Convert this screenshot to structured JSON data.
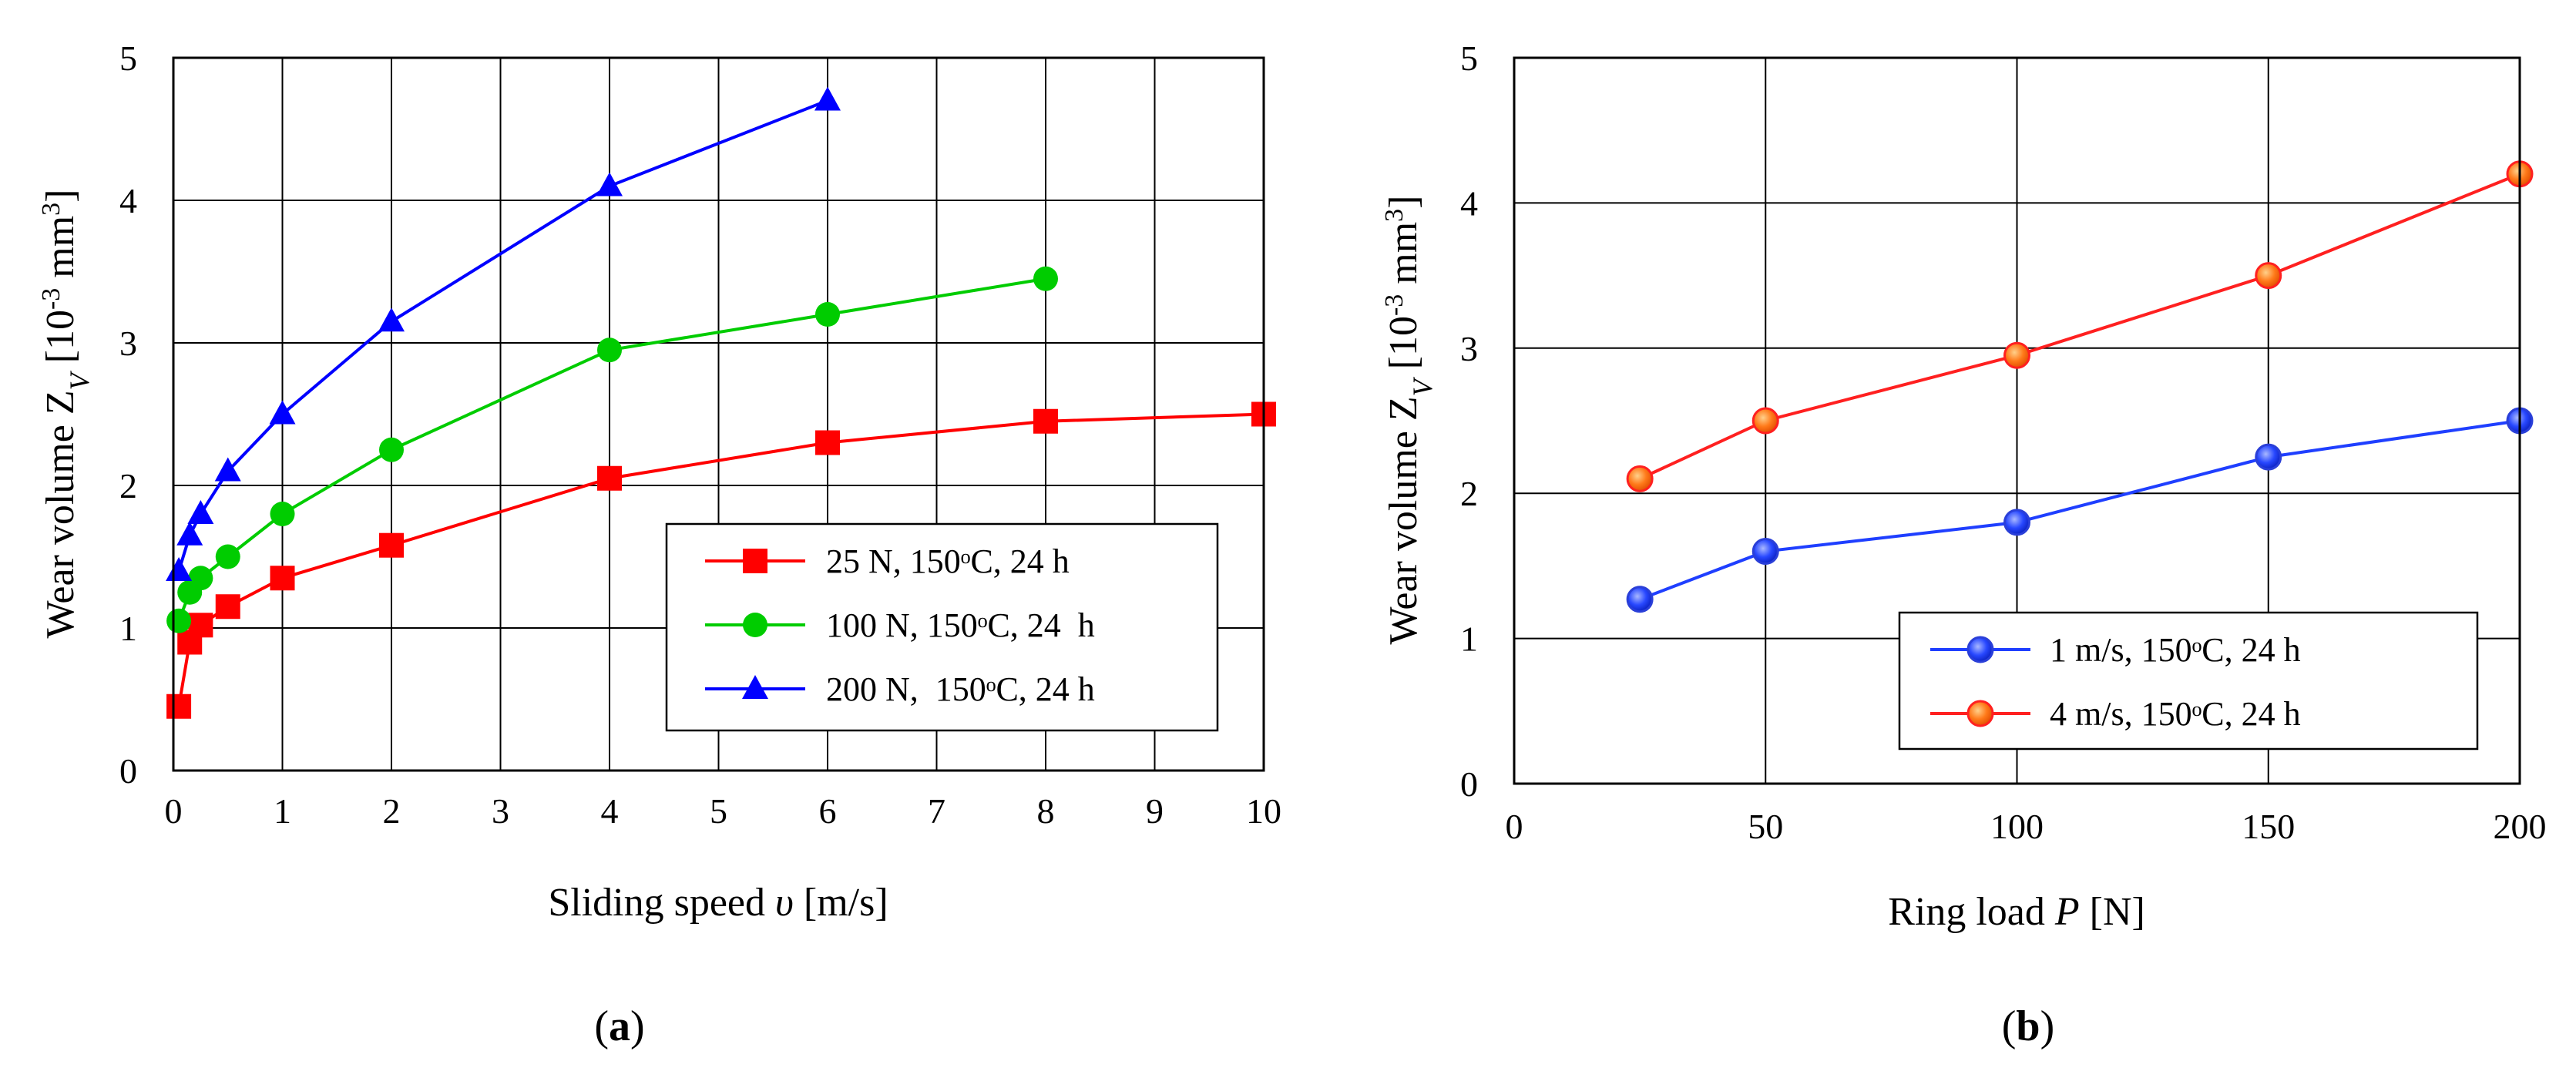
{
  "chart_data": [
    {
      "type": "line",
      "panel_label": "a",
      "xlabel": "Sliding speed υ [m/s]",
      "ylabel": "Wear volume Z_V [10^-3 mm^3]",
      "xlim": [
        0,
        10
      ],
      "ylim": [
        0,
        5
      ],
      "x_ticks": [
        "0",
        "1",
        "2",
        "3",
        "4",
        "5",
        "6",
        "7",
        "8",
        "9",
        "10"
      ],
      "y_ticks": [
        "0",
        "1",
        "2",
        "3",
        "4",
        "5"
      ],
      "grid": true,
      "legend_position": "lower-right",
      "series": [
        {
          "name": "25 N, 150ᵒC, 24 h",
          "color": "#ff0000",
          "marker": "square",
          "x": [
            0.05,
            0.15,
            0.25,
            0.5,
            1,
            2,
            4,
            6,
            8,
            10
          ],
          "y": [
            0.45,
            0.9,
            1.02,
            1.15,
            1.35,
            1.58,
            2.05,
            2.3,
            2.45,
            2.5
          ]
        },
        {
          "name": "100 N, 150ᵒC, 24  h",
          "color": "#00cc00",
          "marker": "circle",
          "x": [
            0.05,
            0.15,
            0.25,
            0.5,
            1,
            2,
            4,
            6,
            8
          ],
          "y": [
            1.05,
            1.25,
            1.35,
            1.5,
            1.8,
            2.25,
            2.95,
            3.2,
            3.45
          ]
        },
        {
          "name": "200 N,  150ᵒC, 24 h",
          "color": "#0000ff",
          "marker": "triangle",
          "x": [
            0.05,
            0.15,
            0.25,
            0.5,
            1,
            2,
            4,
            6
          ],
          "y": [
            1.4,
            1.65,
            1.8,
            2.1,
            2.5,
            3.15,
            4.1,
            4.7
          ]
        }
      ]
    },
    {
      "type": "line",
      "panel_label": "b",
      "xlabel": "Ring load P [N]",
      "ylabel": "Wear volume Z_V [10^-3 mm^3]",
      "xlim": [
        0,
        200
      ],
      "ylim": [
        0,
        5
      ],
      "x_ticks": [
        "0",
        "50",
        "100",
        "150",
        "200"
      ],
      "y_ticks": [
        "0",
        "1",
        "2",
        "3",
        "4",
        "5"
      ],
      "grid": true,
      "legend_position": "lower-right",
      "series": [
        {
          "name": "1 m/s, 150ᵒC, 24 h",
          "color": "#1f3fff",
          "marker": "circle",
          "x": [
            25,
            50,
            100,
            150,
            200
          ],
          "y": [
            1.27,
            1.6,
            1.8,
            2.25,
            2.5
          ]
        },
        {
          "name": "4 m/s, 150ᵒC, 24 h",
          "color": "#ff2020",
          "marker": "circle-orange",
          "x": [
            25,
            50,
            100,
            150,
            200
          ],
          "y": [
            2.1,
            2.5,
            2.95,
            3.5,
            4.2
          ]
        }
      ]
    }
  ],
  "text_parts": {
    "ylabel_a": [
      "Wear volume Z",
      "V",
      " [10",
      "-3",
      " mm",
      "3",
      "]"
    ],
    "xlabel_a": [
      "Sliding speed ",
      "υ",
      " [m/s]"
    ],
    "ylabel_b": [
      "Wear volume Z",
      "V",
      " [10",
      "-3",
      " mm",
      "3",
      "]"
    ],
    "xlabel_b": [
      "Ring load ",
      "P",
      " [N]"
    ],
    "panel_a": [
      "(",
      "a",
      ")"
    ],
    "panel_b": [
      "(",
      "b",
      ")"
    ]
  }
}
